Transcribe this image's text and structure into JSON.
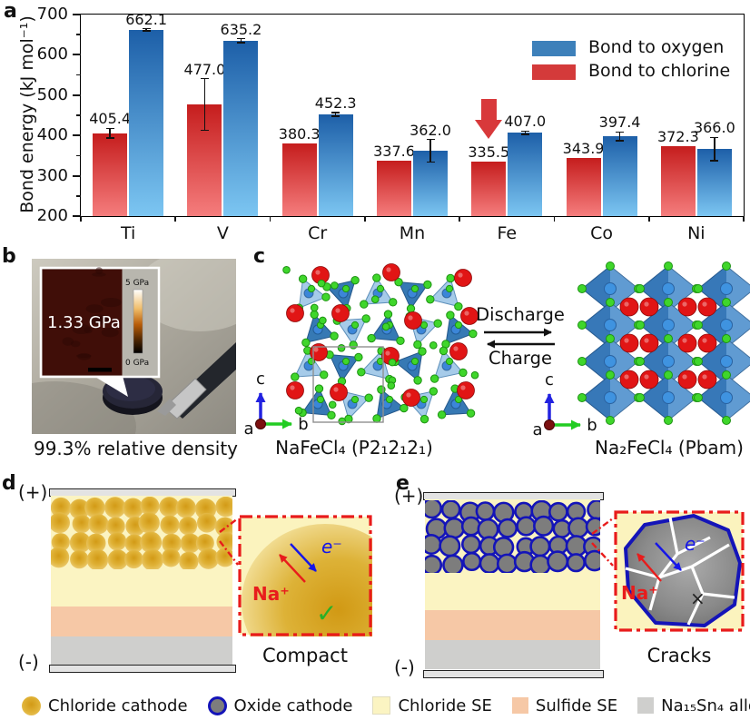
{
  "figure": {
    "panel_labels": {
      "a": "a",
      "b": "b",
      "c": "c",
      "d": "d",
      "e": "e"
    }
  },
  "chart_data": {
    "type": "bar",
    "title": "",
    "xlabel": "",
    "ylabel": "Bond energy (kJ mol⁻¹)",
    "ylim": [
      200,
      700
    ],
    "yticks": [
      200,
      300,
      400,
      500,
      600,
      700
    ],
    "minor_tick_step": 50,
    "grid": false,
    "legend_position": "top-right",
    "categories": [
      "Ti",
      "V",
      "Cr",
      "Mn",
      "Fe",
      "Co",
      "Ni"
    ],
    "series": [
      {
        "name": "Bond to chlorine",
        "values": [
          405.4,
          477.0,
          380.3,
          337.6,
          335.5,
          343.9,
          372.3
        ],
        "errors": [
          12,
          64,
          null,
          null,
          null,
          null,
          null
        ],
        "gradient": [
          "#c51d1d",
          "#f57d7d"
        ]
      },
      {
        "name": "Bond to oxygen",
        "values": [
          662.1,
          635.2,
          452.3,
          362.0,
          407.0,
          397.4,
          366.0
        ],
        "errors": [
          3,
          5,
          5,
          28,
          4,
          11,
          29
        ],
        "gradient": [
          "#1d5fa8",
          "#7cc6f2"
        ]
      }
    ],
    "legend": [
      {
        "label": "Bond to oxygen",
        "color": "#3d80ba"
      },
      {
        "label": "Bond to chlorine",
        "color": "#d43a3a"
      }
    ],
    "annotation": {
      "type": "down-arrow",
      "category": "Fe",
      "series": "Bond to chlorine",
      "color": "#d8393b"
    }
  },
  "panel_b": {
    "inset_value": "1.33 GPa",
    "scale_max": "5 GPa",
    "scale_min": "0 GPa",
    "caption": "99.3% relative density"
  },
  "panel_c": {
    "forward_label": "Discharge",
    "reverse_label": "Charge",
    "left_caption": "NaFeCl₄ (P2₁2₁2₁)",
    "right_caption": "Na₂FeCl₄ (Pbam)",
    "axes": {
      "up": "c",
      "right": "b",
      "origin": "a"
    }
  },
  "panel_d": {
    "positive": "(+)",
    "negative": "(-)",
    "caption": "Compact",
    "inset": {
      "ion_label": "Na⁺",
      "electron_label": "e⁻",
      "ok_mark": "✓"
    }
  },
  "panel_e": {
    "positive": "(+)",
    "negative": "(-)",
    "caption": "Cracks",
    "inset": {
      "ion_label": "Na⁺",
      "electron_label": "e⁻",
      "fail_mark": "×"
    }
  },
  "legend": {
    "items": [
      {
        "label": "Chloride cathode",
        "swatch": "chloride-cathode"
      },
      {
        "label": "Oxide cathode",
        "swatch": "oxide-cathode"
      },
      {
        "label": "Chloride SE",
        "swatch": "chloride-se"
      },
      {
        "label": "Sulfide SE",
        "swatch": "sulfide-se"
      },
      {
        "label": "Na₁₅Sn₄ alloy",
        "swatch": "alloy"
      }
    ]
  },
  "colors": {
    "bond_oxygen_top": "#1d5fa8",
    "bond_oxygen_bottom": "#7cc6f2",
    "bond_chlorine_top": "#c51d1d",
    "bond_chlorine_bottom": "#f57d7d",
    "chloride_cathode": "#e3b338",
    "oxide_cathode_fill": "#7d7d7d",
    "oxide_cathode_ring": "#1414b8",
    "chloride_se": "#fbf4c2",
    "sulfide_se": "#f6c8a6",
    "alloy": "#cfcfcd",
    "electrode": "#e3e3e3",
    "na_ion": "#e81c1c",
    "electron": "#1515e8",
    "check": "#28b028",
    "highlight_arrow": "#d8393b"
  }
}
